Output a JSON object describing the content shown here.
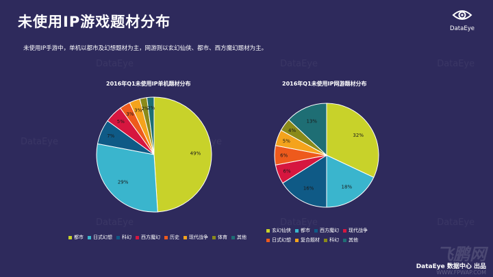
{
  "header": {
    "title": "未使用IP游戏题材分布",
    "subtitle": "未使用IP手游中，单机以都市及幻想题材为主，网游则以玄幻仙侠、都市、西方魔幻题材为主。",
    "logo_text": "DataEye"
  },
  "watermark": {
    "text": "DataEye"
  },
  "footer": {
    "brand": "DataEye 数据中心 出品",
    "site_mark": "飞鹏网",
    "site_url": "WWW.FPWAP.COM"
  },
  "chart_data": [
    {
      "type": "pie",
      "title": "2016年Q1未使用IP单机题材分布",
      "slices": [
        {
          "label": "都市",
          "value": 49,
          "color": "#c8d22a"
        },
        {
          "label": "日式幻想",
          "value": 29,
          "color": "#3ab5cd"
        },
        {
          "label": "科幻",
          "value": 7,
          "color": "#0f5a86"
        },
        {
          "label": "西方魔幻",
          "value": 5,
          "color": "#d6163f"
        },
        {
          "label": "历史",
          "value": 3,
          "color": "#ee5a1c"
        },
        {
          "label": "现代战争",
          "value": 3,
          "color": "#f4a31c"
        },
        {
          "label": "体育",
          "value": 2,
          "color": "#8a8a1a"
        },
        {
          "label": "其他",
          "value": 2,
          "color": "#1e6e74"
        }
      ]
    },
    {
      "type": "pie",
      "title": "2016年Q1未使用IP网游题材分布",
      "slices": [
        {
          "label": "玄幻仙侠",
          "value": 32,
          "color": "#c8d22a"
        },
        {
          "label": "都市",
          "value": 18,
          "color": "#3ab5cd"
        },
        {
          "label": "西方魔幻",
          "value": 16,
          "color": "#0f5a86"
        },
        {
          "label": "现代战争",
          "value": 6,
          "color": "#d6163f"
        },
        {
          "label": "日式幻想",
          "value": 6,
          "color": "#ee5a1c"
        },
        {
          "label": "复合题材",
          "value": 5,
          "color": "#f4a31c"
        },
        {
          "label": "科幻",
          "value": 4,
          "color": "#8a8a1a"
        },
        {
          "label": "其他",
          "value": 13,
          "color": "#1e6e74"
        }
      ]
    }
  ]
}
